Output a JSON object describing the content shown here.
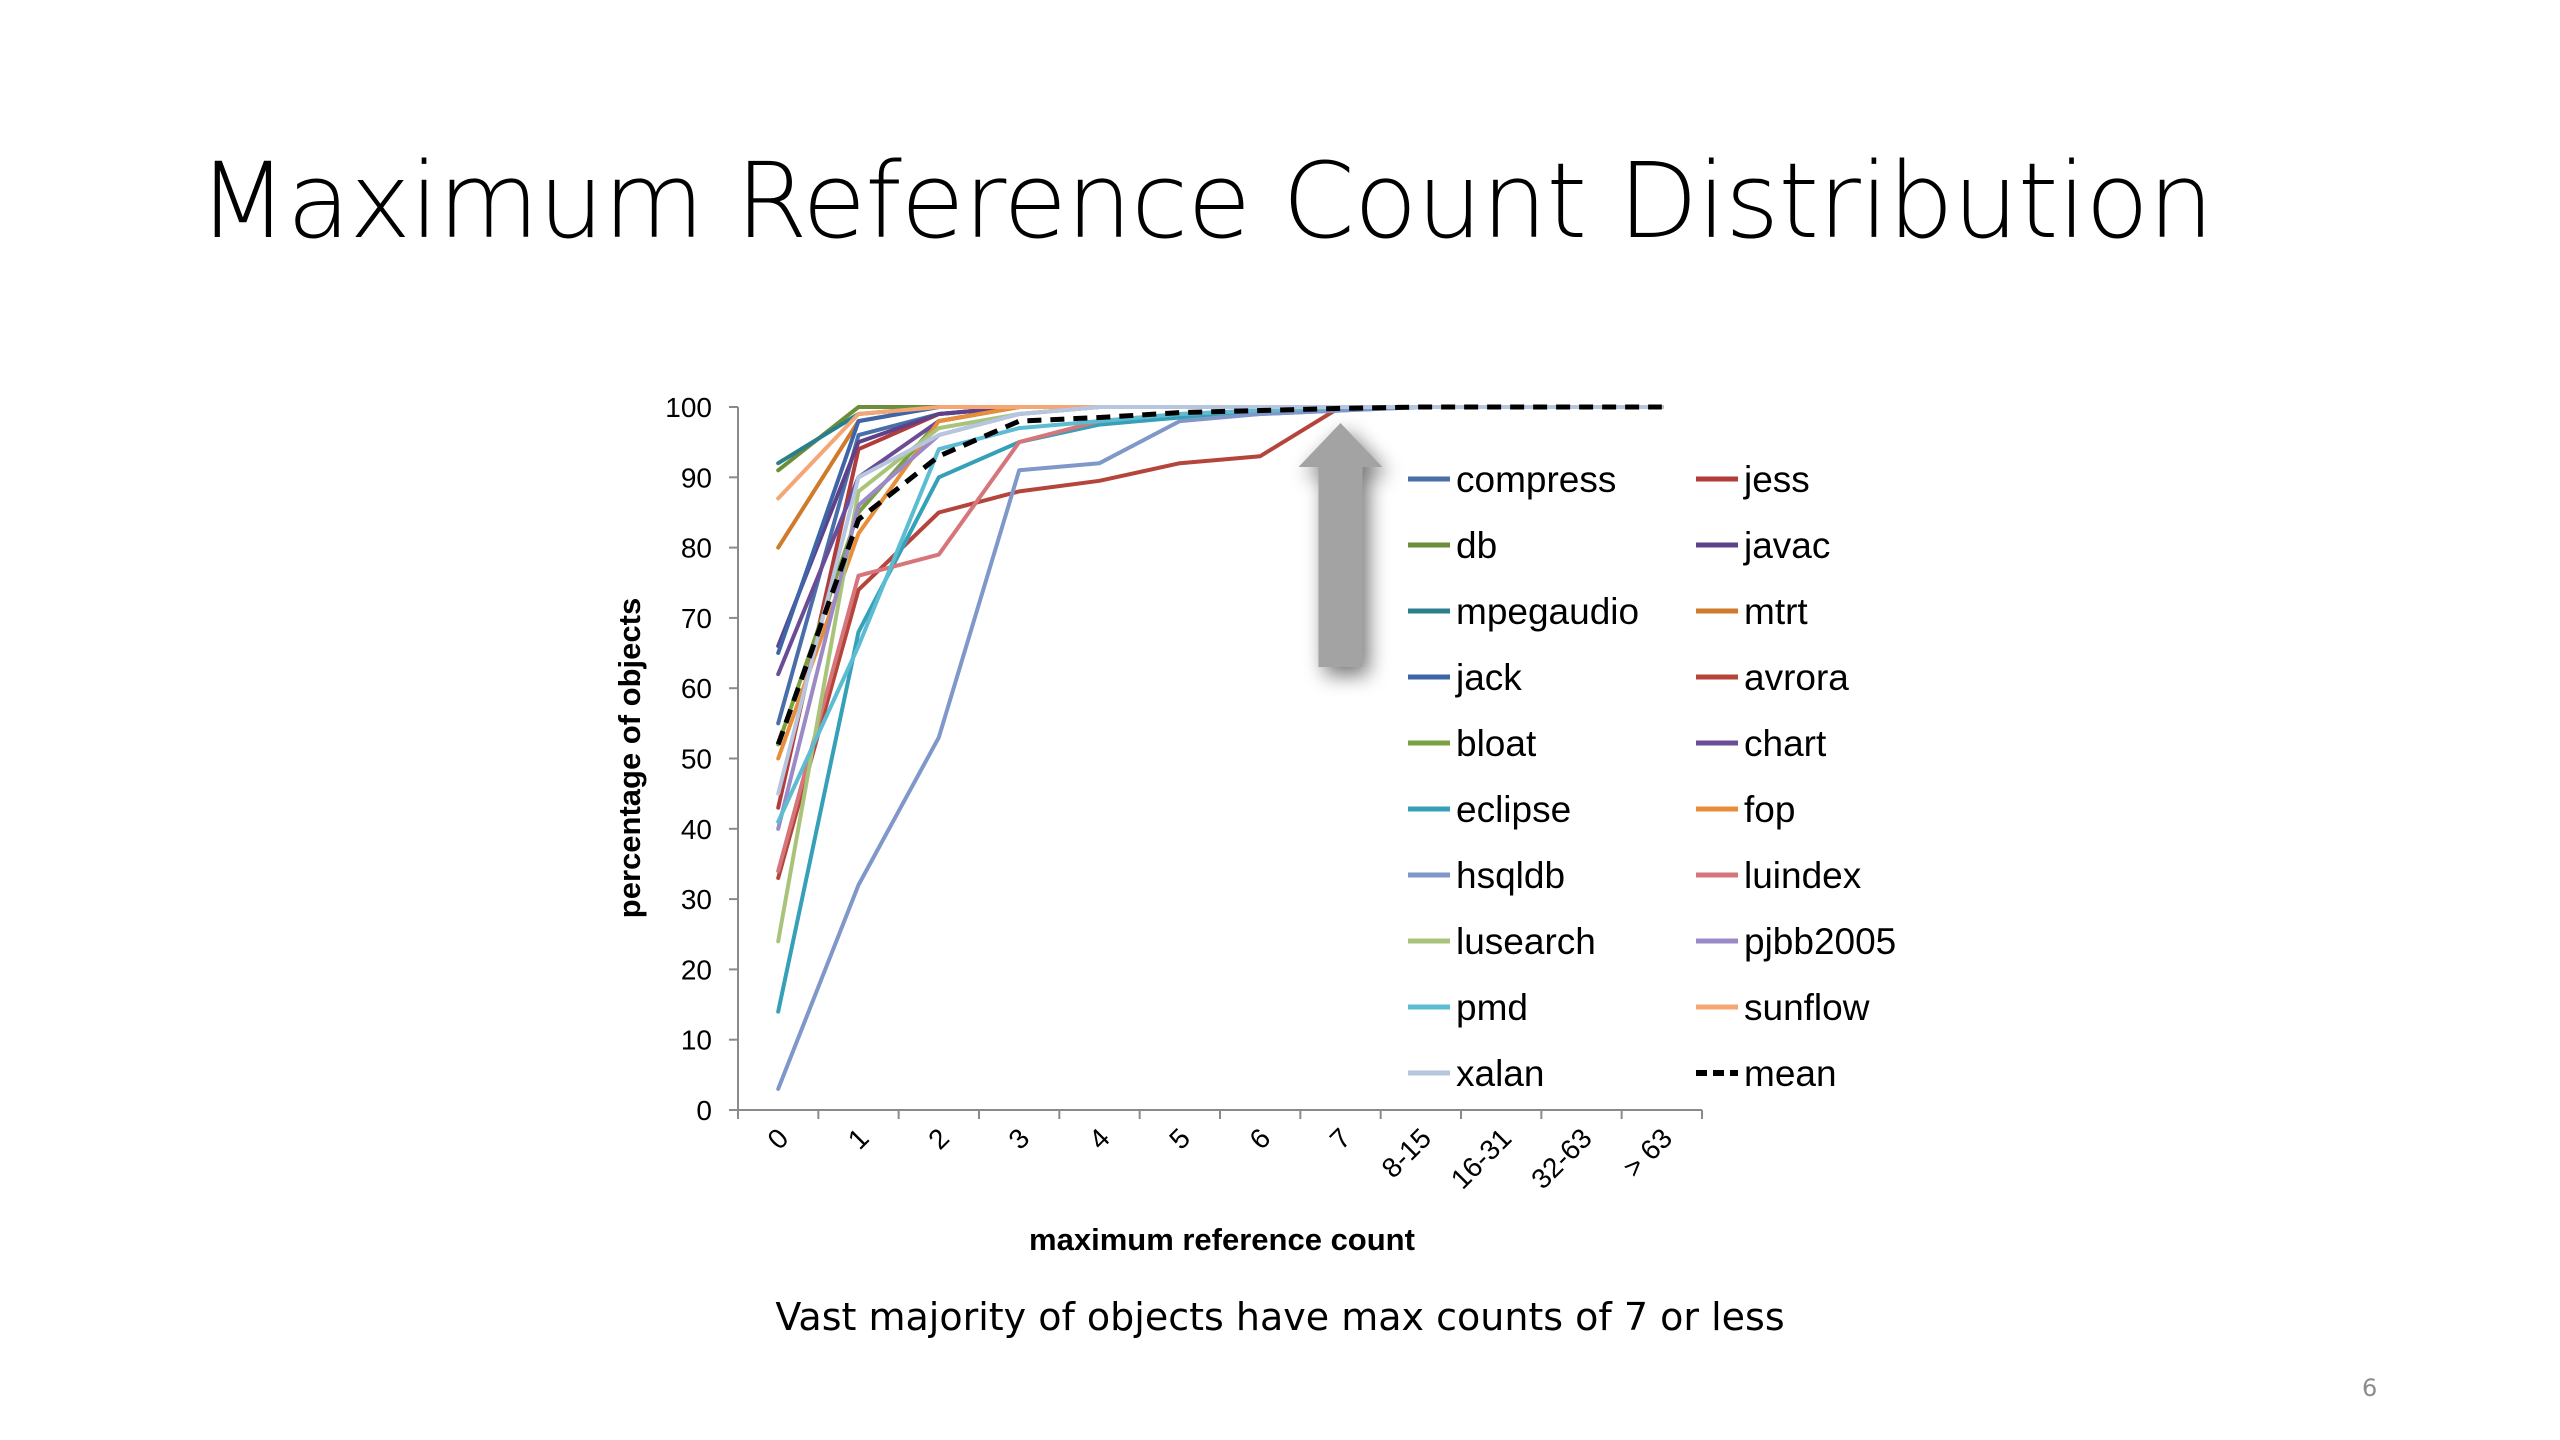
{
  "slide": {
    "title": "Maximum Reference Count Distribution",
    "caption": "Vast majority of objects have max counts of 7 or less",
    "page_number": "6"
  },
  "chart_data": {
    "type": "line",
    "xlabel": "maximum reference count",
    "ylabel": "percentage of objects",
    "ylim": [
      0,
      100
    ],
    "yticks": [
      0,
      10,
      20,
      30,
      40,
      50,
      60,
      70,
      80,
      90,
      100
    ],
    "categories": [
      "0",
      "1",
      "2",
      "3",
      "4",
      "5",
      "6",
      "7",
      "8-15",
      "16-31",
      "32-63",
      "> 63"
    ],
    "grid": false,
    "legend_placement": "right-inside, two columns",
    "annotation": "grey upward arrow at x = 7",
    "series": [
      {
        "name": "compress",
        "color": "#4a6fa8",
        "values": [
          55,
          96,
          99,
          100,
          100,
          100,
          100,
          100,
          100,
          100,
          100,
          100
        ]
      },
      {
        "name": "jess",
        "color": "#b23c3c",
        "values": [
          43,
          94,
          99,
          100,
          100,
          100,
          100,
          100,
          100,
          100,
          100,
          100
        ]
      },
      {
        "name": "db",
        "color": "#6b8e3a",
        "values": [
          91,
          100,
          100,
          100,
          100,
          100,
          100,
          100,
          100,
          100,
          100,
          100
        ]
      },
      {
        "name": "javac",
        "color": "#5d4289",
        "values": [
          66,
          95,
          99,
          100,
          100,
          100,
          100,
          100,
          100,
          100,
          100,
          100
        ]
      },
      {
        "name": "mpegaudio",
        "color": "#2b7f8c",
        "values": [
          92,
          99,
          100,
          100,
          100,
          100,
          100,
          100,
          100,
          100,
          100,
          100
        ]
      },
      {
        "name": "mtrt",
        "color": "#d07a2c",
        "values": [
          80,
          98,
          100,
          100,
          100,
          100,
          100,
          100,
          100,
          100,
          100,
          100
        ]
      },
      {
        "name": "jack",
        "color": "#3d65a8",
        "values": [
          65,
          98,
          100,
          100,
          100,
          100,
          100,
          100,
          100,
          100,
          100,
          100
        ]
      },
      {
        "name": "avrora",
        "color": "#b5443b",
        "values": [
          33,
          74,
          85,
          88,
          89.5,
          92,
          93,
          100,
          100,
          100,
          100,
          100
        ]
      },
      {
        "name": "bloat",
        "color": "#7aa040",
        "values": [
          52,
          85,
          98,
          100,
          100,
          100,
          100,
          100,
          100,
          100,
          100,
          100
        ]
      },
      {
        "name": "chart",
        "color": "#6a4d96",
        "values": [
          62,
          90,
          98,
          100,
          100,
          100,
          100,
          100,
          100,
          100,
          100,
          100
        ]
      },
      {
        "name": "eclipse",
        "color": "#35a0b8",
        "values": [
          14,
          68,
          90,
          95,
          97.5,
          98.5,
          99,
          99.5,
          100,
          100,
          100,
          100
        ]
      },
      {
        "name": "fop",
        "color": "#e88e3a",
        "values": [
          50,
          82,
          98,
          100,
          100,
          100,
          100,
          100,
          100,
          100,
          100,
          100
        ]
      },
      {
        "name": "hsqldb",
        "color": "#7f97c9",
        "values": [
          3,
          32,
          53,
          91,
          92,
          98,
          99,
          99.5,
          100,
          100,
          100,
          100
        ]
      },
      {
        "name": "luindex",
        "color": "#d6757a",
        "values": [
          34,
          76,
          79,
          95,
          98,
          99,
          99.5,
          100,
          100,
          100,
          100,
          100
        ]
      },
      {
        "name": "lusearch",
        "color": "#a9c47a",
        "values": [
          24,
          88,
          97,
          99,
          100,
          100,
          100,
          100,
          100,
          100,
          100,
          100
        ]
      },
      {
        "name": "pjbb2005",
        "color": "#9c8ac7",
        "values": [
          40,
          86,
          96,
          99,
          100,
          100,
          100,
          100,
          100,
          100,
          100,
          100
        ]
      },
      {
        "name": "pmd",
        "color": "#5bbcd2",
        "values": [
          41,
          66,
          94,
          97,
          98,
          99,
          99.5,
          100,
          100,
          100,
          100,
          100
        ]
      },
      {
        "name": "sunflow",
        "color": "#f4a675",
        "values": [
          87,
          99,
          100,
          100,
          100,
          100,
          100,
          100,
          100,
          100,
          100,
          100
        ]
      },
      {
        "name": "xalan",
        "color": "#b7c6df",
        "values": [
          45,
          90,
          96,
          99,
          100,
          100,
          100,
          100,
          100,
          100,
          100,
          100
        ]
      },
      {
        "name": "mean",
        "color": "#000000",
        "dashed": true,
        "values": [
          52,
          84,
          93,
          98,
          98.5,
          99.2,
          99.5,
          99.8,
          100,
          100,
          100,
          100
        ]
      }
    ]
  }
}
